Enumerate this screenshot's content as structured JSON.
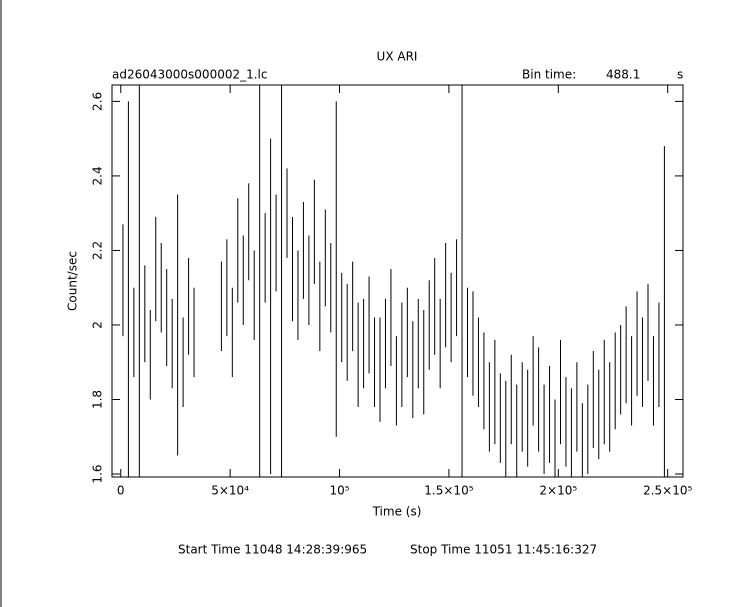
{
  "chart_data": {
    "type": "errorbar",
    "title": "UX ARI",
    "file_label": "ad26043000s000002_1.lc",
    "bin_time_label": "Bin time:",
    "bin_time": 488.1,
    "bin_time_unit": "s",
    "xlabel": "Time (s)",
    "ylabel": "Count/sec",
    "start_time": "Start Time 11048 14:28:39:965",
    "stop_time": "Stop Time 11051 11:45:16:327",
    "color": "#000000",
    "xlim": [
      -4000,
      257000
    ],
    "ylim": [
      1.592,
      2.644
    ],
    "xticks": [
      0,
      {
        "value": 50000,
        "label": "5×10⁴"
      },
      {
        "value": 100000,
        "label": "10⁵"
      },
      {
        "value": 150000,
        "label": "1.5×10⁵"
      },
      {
        "value": 200000,
        "label": "2×10⁵"
      },
      {
        "value": 250000,
        "label": "2.5×10⁵"
      }
    ],
    "yticks": [
      1.6,
      1.8,
      2,
      2.2,
      2.4,
      2.6
    ],
    "x": [
      1000,
      3500,
      6000,
      8500,
      11000,
      13500,
      16000,
      18500,
      21000,
      23500,
      26000,
      28500,
      31000,
      33500,
      46000,
      48500,
      51000,
      53500,
      56000,
      58500,
      61000,
      63500,
      66000,
      68500,
      71000,
      73500,
      76000,
      78500,
      81000,
      83500,
      86000,
      88500,
      91000,
      93500,
      96000,
      98500,
      101000,
      103500,
      106000,
      108500,
      111000,
      113500,
      116000,
      118500,
      121000,
      123500,
      126000,
      128500,
      131000,
      133500,
      136000,
      138500,
      141000,
      143500,
      146000,
      148500,
      151000,
      153500,
      156000,
      158500,
      161000,
      163500,
      166000,
      168500,
      171000,
      173500,
      176000,
      178500,
      181000,
      183500,
      186000,
      188500,
      191000,
      193500,
      196000,
      198500,
      201000,
      203500,
      206000,
      208500,
      211000,
      213500,
      216000,
      218500,
      221000,
      223500,
      226000,
      228500,
      231000,
      233500,
      236000,
      238500,
      241000,
      243500,
      246000,
      248500
    ],
    "values": [
      2.12,
      2.05,
      1.98,
      2.08,
      2.03,
      1.92,
      2.15,
      2.1,
      2.02,
      1.95,
      2.0,
      1.9,
      2.05,
      1.98,
      2.05,
      2.1,
      1.98,
      2.2,
      2.12,
      2.25,
      2.08,
      2.15,
      2.18,
      2.05,
      2.22,
      2.1,
      2.3,
      2.15,
      2.08,
      2.2,
      2.12,
      2.25,
      2.05,
      2.18,
      2.1,
      2.15,
      2.02,
      1.98,
      2.05,
      1.92,
      1.95,
      2.0,
      1.9,
      1.88,
      1.95,
      2.02,
      1.85,
      1.92,
      1.98,
      1.88,
      1.95,
      1.9,
      2.0,
      2.05,
      1.95,
      2.08,
      2.02,
      2.1,
      2.05,
      1.98,
      1.95,
      1.9,
      1.85,
      1.78,
      1.82,
      1.75,
      1.72,
      1.8,
      1.7,
      1.78,
      1.75,
      1.85,
      1.8,
      1.72,
      1.76,
      1.68,
      1.82,
      1.74,
      1.7,
      1.78,
      1.65,
      1.72,
      1.8,
      1.76,
      1.82,
      1.78,
      1.85,
      1.88,
      1.92,
      1.85,
      1.95,
      1.9,
      1.98,
      1.85,
      1.92,
      1.88
    ],
    "errors": [
      0.15,
      0.55,
      0.12,
      0.6,
      0.13,
      0.12,
      0.14,
      0.12,
      0.13,
      0.12,
      0.35,
      0.12,
      0.13,
      0.12,
      0.12,
      0.13,
      0.12,
      0.14,
      0.12,
      0.13,
      0.12,
      0.6,
      0.12,
      0.45,
      0.13,
      0.6,
      0.12,
      0.14,
      0.12,
      0.13,
      0.12,
      0.14,
      0.12,
      0.13,
      0.12,
      0.45,
      0.12,
      0.13,
      0.12,
      0.14,
      0.12,
      0.13,
      0.12,
      0.14,
      0.12,
      0.13,
      0.12,
      0.14,
      0.12,
      0.13,
      0.12,
      0.14,
      0.12,
      0.13,
      0.12,
      0.14,
      0.12,
      0.13,
      0.6,
      0.12,
      0.14,
      0.12,
      0.13,
      0.12,
      0.14,
      0.12,
      0.13,
      0.12,
      0.14,
      0.12,
      0.13,
      0.12,
      0.14,
      0.12,
      0.13,
      0.12,
      0.14,
      0.12,
      0.13,
      0.12,
      0.14,
      0.12,
      0.13,
      0.12,
      0.14,
      0.12,
      0.13,
      0.12,
      0.13,
      0.12,
      0.14,
      0.12,
      0.13,
      0.12,
      0.14,
      0.6
    ]
  }
}
